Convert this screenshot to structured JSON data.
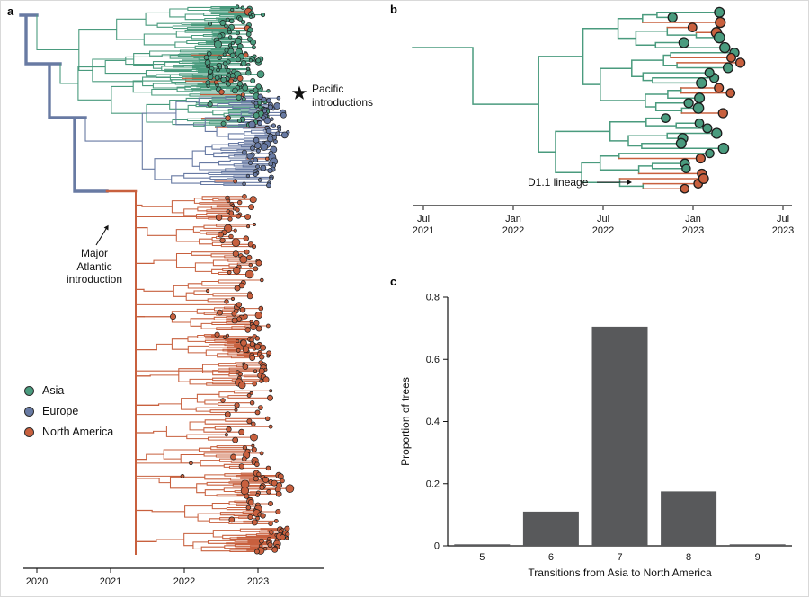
{
  "figure": {
    "panel_a_label": "a",
    "panel_b_label": "b",
    "panel_c_label": "c"
  },
  "colors": {
    "asia": "#4a9b7e",
    "europe": "#687aa3",
    "north_america": "#c8603e",
    "bar": "#58595b",
    "axis": "#111111",
    "background": "#ffffff"
  },
  "legend": {
    "items": [
      {
        "label": "Asia",
        "color_key": "asia"
      },
      {
        "label": "Europe",
        "color_key": "europe"
      },
      {
        "label": "North America",
        "color_key": "north_america"
      }
    ]
  },
  "panel_a": {
    "annotations": {
      "pacific": [
        "Pacific",
        "introductions"
      ],
      "atlantic": [
        "Major",
        "Atlantic",
        "introduction"
      ]
    }
  },
  "panel_b": {
    "annotation": "D1.1 lineage"
  },
  "chart_data": [
    {
      "panel": "a",
      "type": "phylogeny",
      "description": "Time-scaled phylogenetic tree with branches and tips colored by region (Asia, Europe, North America); thick basal backbone is European",
      "x_axis": {
        "tick_labels": [
          "2020",
          "2021",
          "2022",
          "2023"
        ]
      },
      "regions": [
        {
          "name": "Asia",
          "color_key": "asia"
        },
        {
          "name": "Europe",
          "color_key": "europe"
        },
        {
          "name": "North America",
          "color_key": "north_america"
        }
      ],
      "clades": [
        {
          "name": "asia-clade-top",
          "region": "asia",
          "n_tips": 85
        },
        {
          "name": "asia-clade-pacific-introductions",
          "region": "asia",
          "n_tips": 55,
          "minority_tip_region": "north_america"
        },
        {
          "name": "europe-clade",
          "region": "europe",
          "n_tips": 68
        },
        {
          "name": "north-america-clade",
          "region": "north_america",
          "n_tips": 230
        }
      ],
      "annotations": [
        "Pacific introductions",
        "Major Atlantic introduction"
      ]
    },
    {
      "panel": "b",
      "type": "phylogeny",
      "description": "Zoomed phylogeny of Pacific introductions; large tips colored Asia (green) or North America (orange); D1.1 lineage marked at lower right",
      "n_tips": 36,
      "x_axis": {
        "ticks": [
          [
            "Jul",
            "2021"
          ],
          [
            "Jan",
            "2022"
          ],
          [
            "Jul",
            "2022"
          ],
          [
            "Jan",
            "2023"
          ],
          [
            "Jul",
            "2023"
          ]
        ]
      },
      "tip_regions": [
        "asia",
        "north_america"
      ],
      "annotations": [
        "D1.1 lineage"
      ]
    },
    {
      "panel": "c",
      "type": "bar",
      "categories": [
        "5",
        "6",
        "7",
        "8",
        "9"
      ],
      "values": [
        0.005,
        0.11,
        0.705,
        0.175,
        0.005
      ],
      "title": "",
      "xlabel": "Transitions from Asia to North America",
      "ylabel": "Proportion of trees",
      "ylim": [
        0,
        0.8
      ],
      "yticks": [
        0,
        0.2,
        0.4,
        0.6,
        0.8
      ],
      "ytick_labels": [
        "0",
        "0.2",
        "0.4",
        "0.6",
        "0.8"
      ],
      "bar_color_key": "bar",
      "grid": false,
      "legend": "none"
    }
  ]
}
